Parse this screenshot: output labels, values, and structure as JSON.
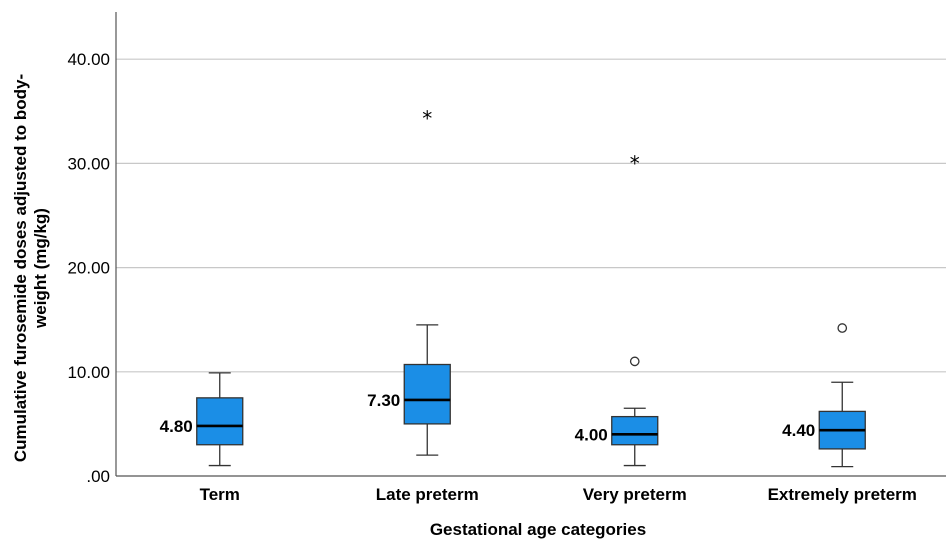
{
  "chart_data": {
    "type": "boxplot",
    "xlabel": "Gestational age categories",
    "ylabel_lines": [
      "Cumulative furosemide doses adjusted to body-",
      "weight (mg/kg)"
    ],
    "ylim": [
      0,
      45
    ],
    "yticks": [
      0,
      10,
      20,
      30,
      40
    ],
    "ytick_labels": [
      ".00",
      "10.00",
      "20.00",
      "30.00",
      "40.00"
    ],
    "grid": true,
    "box_color": "#1b8ee6",
    "groups": [
      {
        "category": "Term",
        "min": 1.0,
        "q1": 3.0,
        "median": 4.8,
        "q3": 7.5,
        "max": 9.9,
        "median_label": "4.80",
        "outliers": [],
        "extremes": []
      },
      {
        "category": "Late preterm",
        "min": 2.0,
        "q1": 5.0,
        "median": 7.3,
        "q3": 10.7,
        "max": 14.5,
        "median_label": "7.30",
        "outliers": [],
        "extremes": [
          34.5
        ]
      },
      {
        "category": "Very preterm",
        "min": 1.0,
        "q1": 3.0,
        "median": 4.0,
        "q3": 5.7,
        "max": 6.5,
        "median_label": "4.00",
        "outliers": [
          11.0
        ],
        "extremes": [
          30.2
        ]
      },
      {
        "category": "Extremely preterm",
        "min": 0.9,
        "q1": 2.6,
        "median": 4.4,
        "q3": 6.2,
        "max": 9.0,
        "median_label": "4.40",
        "outliers": [
          14.2
        ],
        "extremes": []
      }
    ]
  }
}
